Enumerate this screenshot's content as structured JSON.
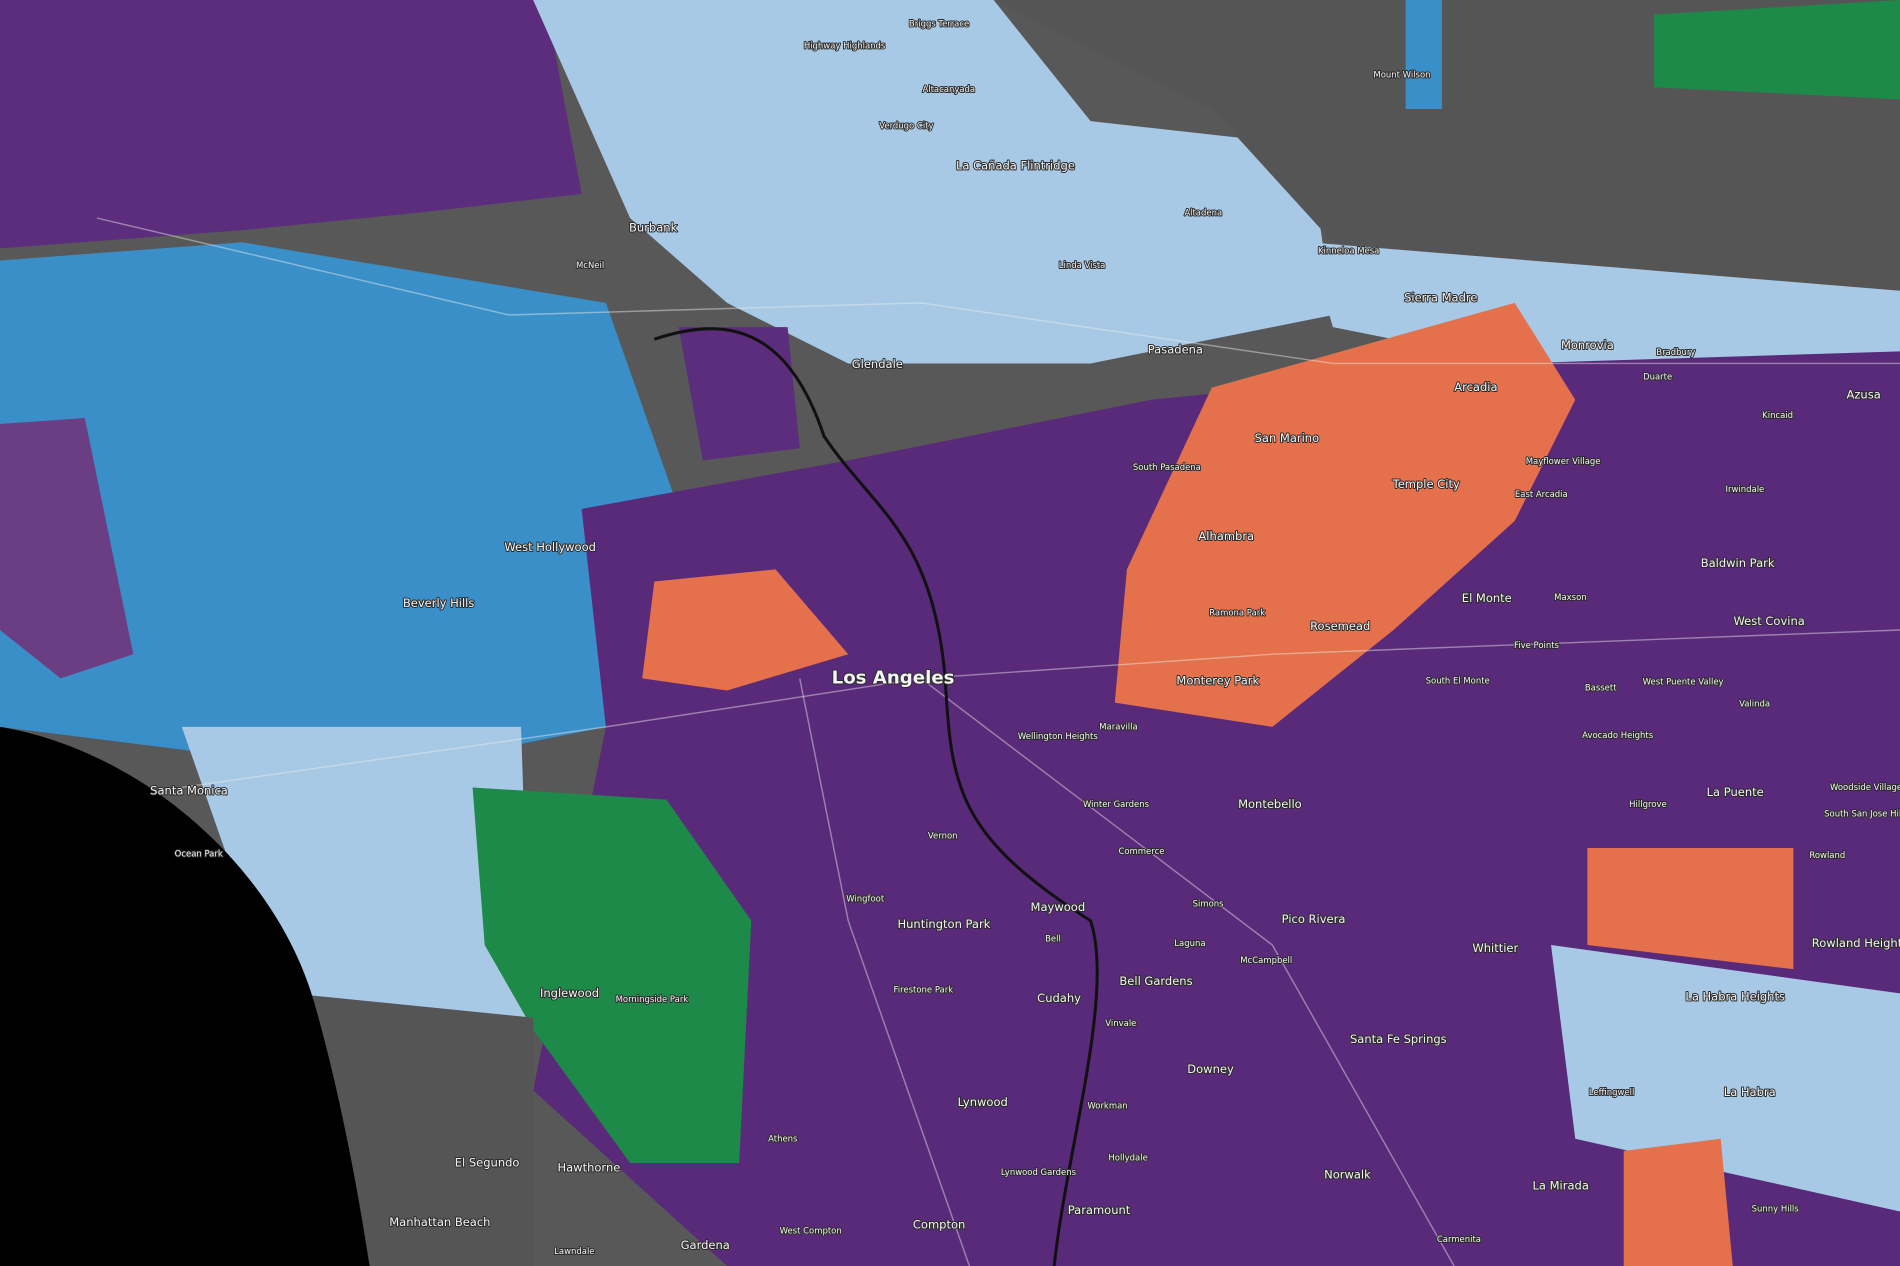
{
  "labels": [
    "Briggs Terrace",
    "Highway Highlands",
    "Altacanyada",
    "Mount Wilson",
    "Verdugo City",
    "La Cañada Flintridge",
    "Burbank",
    "Altadena",
    "McNeil",
    "Kinneloa Mesa",
    "Linda Vista",
    "Sierra Madre",
    "Glendale",
    "Pasadena",
    "Monrovia",
    "Bradbury",
    "Duarte",
    "Azusa",
    "Arcadia",
    "Kincaid",
    "San Marino",
    "South Pasadena",
    "Mayflower Village",
    "Temple City",
    "East Arcadia",
    "Irwindale",
    "Alhambra",
    "West Hollywood",
    "Baldwin Park",
    "El Monte",
    "Maxson",
    "Beverly Hills",
    "Ramona Park",
    "Rosemead",
    "West Covina",
    "Five Points",
    "Los Angeles",
    "South El Monte",
    "Monterey Park",
    "Bassett",
    "West Puente Valley",
    "Valinda",
    "Wellington Heights",
    "Maravilla",
    "Avocado Heights",
    "Santa Monica",
    "Woodside Village",
    "La Puente",
    "South San Jose Hills",
    "Winter Gardens",
    "Montebello",
    "Hillgrove",
    "Ocean Park",
    "Vernon",
    "Commerce",
    "Rowland",
    "Wingfoot",
    "Maywood",
    "Simons",
    "Pico Rivera",
    "Huntington Park",
    "Bell",
    "Laguna",
    "Whittier",
    "Rowland Heights",
    "McCampbell",
    "Firestone Park",
    "Bell Gardens",
    "Inglewood",
    "Morningside Park",
    "La Habra Heights",
    "Cudahy",
    "Vinvale",
    "Santa Fe Springs",
    "Downey",
    "Leffingwell",
    "La Habra",
    "Lynwood",
    "Workman",
    "El Segundo",
    "Hawthorne",
    "Athens",
    "Hollydale",
    "Lynwood Gardens",
    "Norwalk",
    "La Mirada",
    "Sunny Hills",
    "Paramount",
    "Manhattan Beach",
    "Compton",
    "West Compton",
    "Lawndale",
    "Gardena",
    "Carmenita"
  ]
}
